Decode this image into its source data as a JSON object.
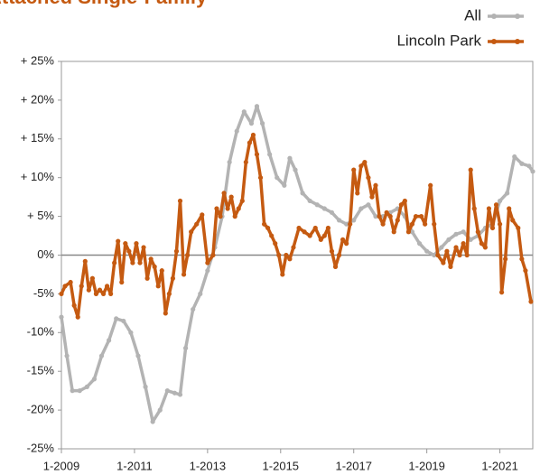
{
  "chart_data": {
    "type": "line",
    "title": "Attached Single-Family",
    "xlim": [
      2009,
      2021.9
    ],
    "xticks": [
      {
        "value": 2009,
        "label": "1-2009"
      },
      {
        "value": 2011,
        "label": "1-2011"
      },
      {
        "value": 2013,
        "label": "1-2013"
      },
      {
        "value": 2015,
        "label": "1-2015"
      },
      {
        "value": 2017,
        "label": "1-2017"
      },
      {
        "value": 2019,
        "label": "1-2019"
      },
      {
        "value": 2021,
        "label": "1-2021"
      }
    ],
    "ylim": [
      -25,
      25
    ],
    "yticks": [
      {
        "value": 25,
        "label": "+ 25%"
      },
      {
        "value": 20,
        "label": "+ 20%"
      },
      {
        "value": 15,
        "label": "+ 15%"
      },
      {
        "value": 10,
        "label": "+ 10%"
      },
      {
        "value": 5,
        "label": "+ 5%"
      },
      {
        "value": 0,
        "label": "0%"
      },
      {
        "value": -5,
        "label": "-5%"
      },
      {
        "value": -10,
        "label": "-10%"
      },
      {
        "value": -15,
        "label": "-15%"
      },
      {
        "value": -20,
        "label": "-20%"
      },
      {
        "value": -25,
        "label": "-25%"
      }
    ],
    "legend": "top-right",
    "series": [
      {
        "name": "All",
        "color": "#b3b3b3",
        "x": [
          2009.0,
          2009.15,
          2009.3,
          2009.5,
          2009.7,
          2009.9,
          2010.1,
          2010.3,
          2010.5,
          2010.7,
          2010.9,
          2011.1,
          2011.3,
          2011.5,
          2011.7,
          2011.9,
          2012.1,
          2012.25,
          2012.4,
          2012.6,
          2012.8,
          2013.0,
          2013.2,
          2013.4,
          2013.6,
          2013.8,
          2014.0,
          2014.2,
          2014.35,
          2014.5,
          2014.7,
          2014.9,
          2015.1,
          2015.25,
          2015.4,
          2015.6,
          2015.8,
          2016.0,
          2016.2,
          2016.4,
          2016.6,
          2016.8,
          2017.0,
          2017.2,
          2017.4,
          2017.6,
          2017.8,
          2018.0,
          2018.2,
          2018.4,
          2018.6,
          2018.8,
          2019.0,
          2019.2,
          2019.4,
          2019.6,
          2019.8,
          2020.0,
          2020.2,
          2020.4,
          2020.6,
          2020.8,
          2021.0,
          2021.2,
          2021.4,
          2021.6,
          2021.8,
          2021.9
        ],
        "values": [
          -8,
          -13,
          -17.5,
          -17.5,
          -17,
          -16,
          -13,
          -11,
          -8.2,
          -8.5,
          -10,
          -13,
          -17,
          -21.5,
          -20,
          -17.5,
          -17.8,
          -18,
          -12,
          -7,
          -5,
          -2,
          1,
          5,
          12,
          16,
          18.5,
          17,
          19.2,
          17,
          13,
          10,
          9,
          12.5,
          11,
          8,
          7,
          6.5,
          6,
          5.5,
          4.5,
          4,
          4.5,
          6,
          6.5,
          5,
          5,
          5.5,
          6,
          5,
          3,
          1.5,
          0.5,
          0,
          1,
          2,
          2.7,
          3,
          2,
          2.5,
          3.5,
          4,
          7,
          8,
          12.7,
          11.8,
          11.5,
          10.8
        ]
      },
      {
        "name": "Lincoln Park",
        "color": "#c55a11",
        "x": [
          2009.0,
          2009.1,
          2009.25,
          2009.35,
          2009.45,
          2009.55,
          2009.65,
          2009.75,
          2009.85,
          2009.95,
          2010.05,
          2010.15,
          2010.25,
          2010.35,
          2010.45,
          2010.55,
          2010.65,
          2010.75,
          2010.85,
          2010.95,
          2011.05,
          2011.15,
          2011.25,
          2011.35,
          2011.45,
          2011.55,
          2011.65,
          2011.75,
          2011.85,
          2011.95,
          2012.05,
          2012.15,
          2012.25,
          2012.35,
          2012.45,
          2012.55,
          2012.7,
          2012.85,
          2013.0,
          2013.15,
          2013.25,
          2013.35,
          2013.45,
          2013.55,
          2013.65,
          2013.75,
          2013.85,
          2013.95,
          2014.05,
          2014.15,
          2014.25,
          2014.35,
          2014.45,
          2014.55,
          2014.65,
          2014.75,
          2014.85,
          2014.95,
          2015.05,
          2015.15,
          2015.25,
          2015.35,
          2015.5,
          2015.65,
          2015.8,
          2015.95,
          2016.1,
          2016.2,
          2016.3,
          2016.4,
          2016.5,
          2016.6,
          2016.7,
          2016.8,
          2016.9,
          2017.0,
          2017.1,
          2017.2,
          2017.3,
          2017.4,
          2017.5,
          2017.6,
          2017.7,
          2017.8,
          2017.9,
          2018.0,
          2018.1,
          2018.2,
          2018.3,
          2018.4,
          2018.5,
          2018.6,
          2018.7,
          2018.85,
          2018.95,
          2019.1,
          2019.2,
          2019.3,
          2019.45,
          2019.55,
          2019.65,
          2019.8,
          2019.9,
          2020.0,
          2020.1,
          2020.2,
          2020.3,
          2020.4,
          2020.5,
          2020.6,
          2020.7,
          2020.8,
          2020.9,
          2021.0,
          2021.05,
          2021.15,
          2021.25,
          2021.35,
          2021.5,
          2021.6,
          2021.7,
          2021.85
        ],
        "values": [
          -5,
          -4,
          -3.5,
          -6.5,
          -8,
          -4,
          -0.8,
          -4.5,
          -3,
          -5,
          -4.5,
          -5,
          -4,
          -5,
          -1,
          1.8,
          -3.5,
          1.5,
          0.5,
          -1,
          1.5,
          -1,
          1,
          -3,
          -0.5,
          -1.5,
          -4,
          -2,
          -7.5,
          -5,
          -3,
          0.5,
          7,
          -2.5,
          0,
          3,
          4,
          5.2,
          -1,
          0,
          6,
          5,
          8,
          6,
          7.5,
          5,
          6,
          7,
          12,
          14.5,
          15.5,
          13,
          10,
          4,
          3.5,
          2.5,
          1.5,
          0,
          -2.5,
          0,
          -0.5,
          1,
          3.5,
          3,
          2.5,
          3.5,
          2,
          2.5,
          3.5,
          0.5,
          -1.5,
          0,
          2,
          1.5,
          4,
          11,
          8,
          11.5,
          12,
          10,
          7.5,
          9,
          5,
          4,
          5.5,
          5,
          3,
          4.5,
          6.5,
          7,
          3,
          4,
          5,
          5,
          4,
          9,
          4,
          0,
          -1,
          0.5,
          -1.5,
          1,
          0,
          1.5,
          0,
          11,
          6,
          3,
          1.5,
          1,
          6,
          3.5,
          6.5,
          4,
          -4.8,
          -0.5,
          6,
          4.5,
          3.5,
          -0.5,
          -2,
          -6
        ]
      }
    ]
  }
}
